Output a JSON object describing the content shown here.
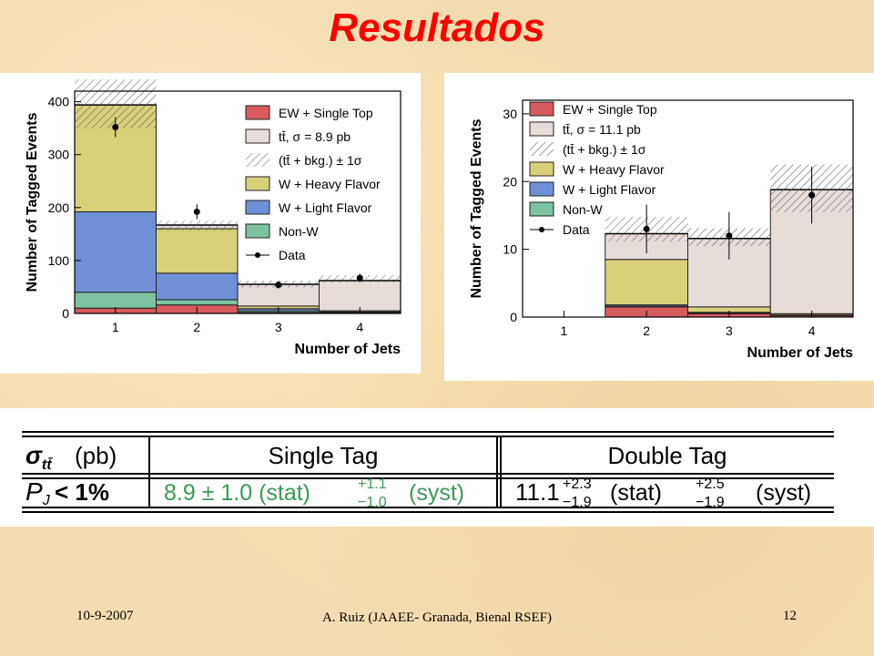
{
  "slide": {
    "title": "Resultados",
    "footer_date": "10-9-2007",
    "footer_center": "A. Ruiz (JAAEE- Granada, Bienal RSEF)",
    "page_number": "12"
  },
  "colors": {
    "title": "#ff0000",
    "ew_single_top": "#d65a5e",
    "ttbar": "#e6dcd8",
    "w_heavy": "#d9d07a",
    "w_light": "#6f8fd6",
    "non_w": "#7cc2a0",
    "table_green": "#3a9a55"
  },
  "chart_data": [
    {
      "type": "bar",
      "stacked": true,
      "xlabel": "Number of Jets",
      "ylabel": "Number of Tagged Events",
      "categories": [
        "1",
        "2",
        "3",
        "4"
      ],
      "ylim": [
        0,
        420
      ],
      "yticks": [
        "0",
        "100",
        "200",
        "300",
        "400"
      ],
      "legend_position": "top-right",
      "legend": [
        "EW + Single Top",
        "tt̄, σ = 8.9 pb",
        "(tt̄ + bkg.) ± 1σ",
        "W + Heavy Flavor",
        "W + Light Flavor",
        "Non-W",
        "Data"
      ],
      "series": [
        {
          "name": "EW + Single Top",
          "values": [
            10,
            16,
            2,
            1
          ]
        },
        {
          "name": "Non-W",
          "values": [
            30,
            10,
            3,
            1
          ]
        },
        {
          "name": "W + Light Flavor",
          "values": [
            152,
            50,
            4,
            1
          ]
        },
        {
          "name": "W + Heavy Flavor",
          "values": [
            202,
            84,
            5,
            2
          ]
        },
        {
          "name": "tt̄, σ = 8.9 pb",
          "values": [
            0,
            7,
            41,
            57
          ]
        }
      ],
      "uncertainty_band": [
        [
          350,
          442
        ],
        [
          157,
          175
        ],
        [
          49,
          62
        ],
        [
          58,
          72
        ]
      ],
      "data_points": [
        {
          "x": "1",
          "y": 352,
          "err": 19
        },
        {
          "x": "2",
          "y": 192,
          "err": 14
        },
        {
          "x": "3",
          "y": 54,
          "err": 7
        },
        {
          "x": "4",
          "y": 67,
          "err": 8
        }
      ]
    },
    {
      "type": "bar",
      "stacked": true,
      "xlabel": "Number of Jets",
      "ylabel": "Number of Tagged Events",
      "categories": [
        "1",
        "2",
        "3",
        "4"
      ],
      "ylim": [
        0,
        32
      ],
      "yticks": [
        "0",
        "10",
        "20",
        "30"
      ],
      "legend_position": "top-left",
      "legend": [
        "EW + Single Top",
        "tt̄, σ = 11.1 pb",
        "(tt̄ + bkg.) ± 1σ",
        "W + Heavy Flavor",
        "W + Light Flavor",
        "Non-W",
        "Data"
      ],
      "series": [
        {
          "name": "EW + Single Top",
          "values": [
            0,
            1.5,
            0.5,
            0.2
          ]
        },
        {
          "name": "Non-W",
          "values": [
            0,
            0.1,
            0.1,
            0.05
          ]
        },
        {
          "name": "W + Light Flavor",
          "values": [
            0,
            0.2,
            0.1,
            0.05
          ]
        },
        {
          "name": "W + Heavy Flavor",
          "values": [
            0,
            6.7,
            0.8,
            0.2
          ]
        },
        {
          "name": "tt̄, σ = 11.1 pb",
          "values": [
            0,
            3.8,
            10.1,
            18.3
          ]
        }
      ],
      "uncertainty_band": [
        [
          0,
          0
        ],
        [
          11.2,
          14.8
        ],
        [
          10.5,
          13.1
        ],
        [
          15.5,
          22.5
        ]
      ],
      "data_points": [
        {
          "x": "2",
          "y": 13,
          "err": 3.6
        },
        {
          "x": "3",
          "y": 12,
          "err": 3.5
        },
        {
          "x": "4",
          "y": 18,
          "err": 4.2
        }
      ]
    }
  ],
  "results_table": {
    "header_label": "σ",
    "header_sub": "tt̄",
    "header_unit": "(pb)",
    "col_single": "Single Tag",
    "col_double": "Double Tag",
    "row_label": "P",
    "row_sub": "J",
    "row_cond": " < 1%",
    "single_value": "8.9 ± 1.0 (stat)",
    "single_up": "+1.1",
    "single_down": "−1.0",
    "single_syst": "(syst)",
    "double_value": "11.1",
    "double_stat_up": "+2.3",
    "double_stat_down": "−1.9",
    "double_stat": "(stat)",
    "double_syst_up": "+2.5",
    "double_syst_down": "−1.9",
    "double_syst": "(syst)"
  }
}
